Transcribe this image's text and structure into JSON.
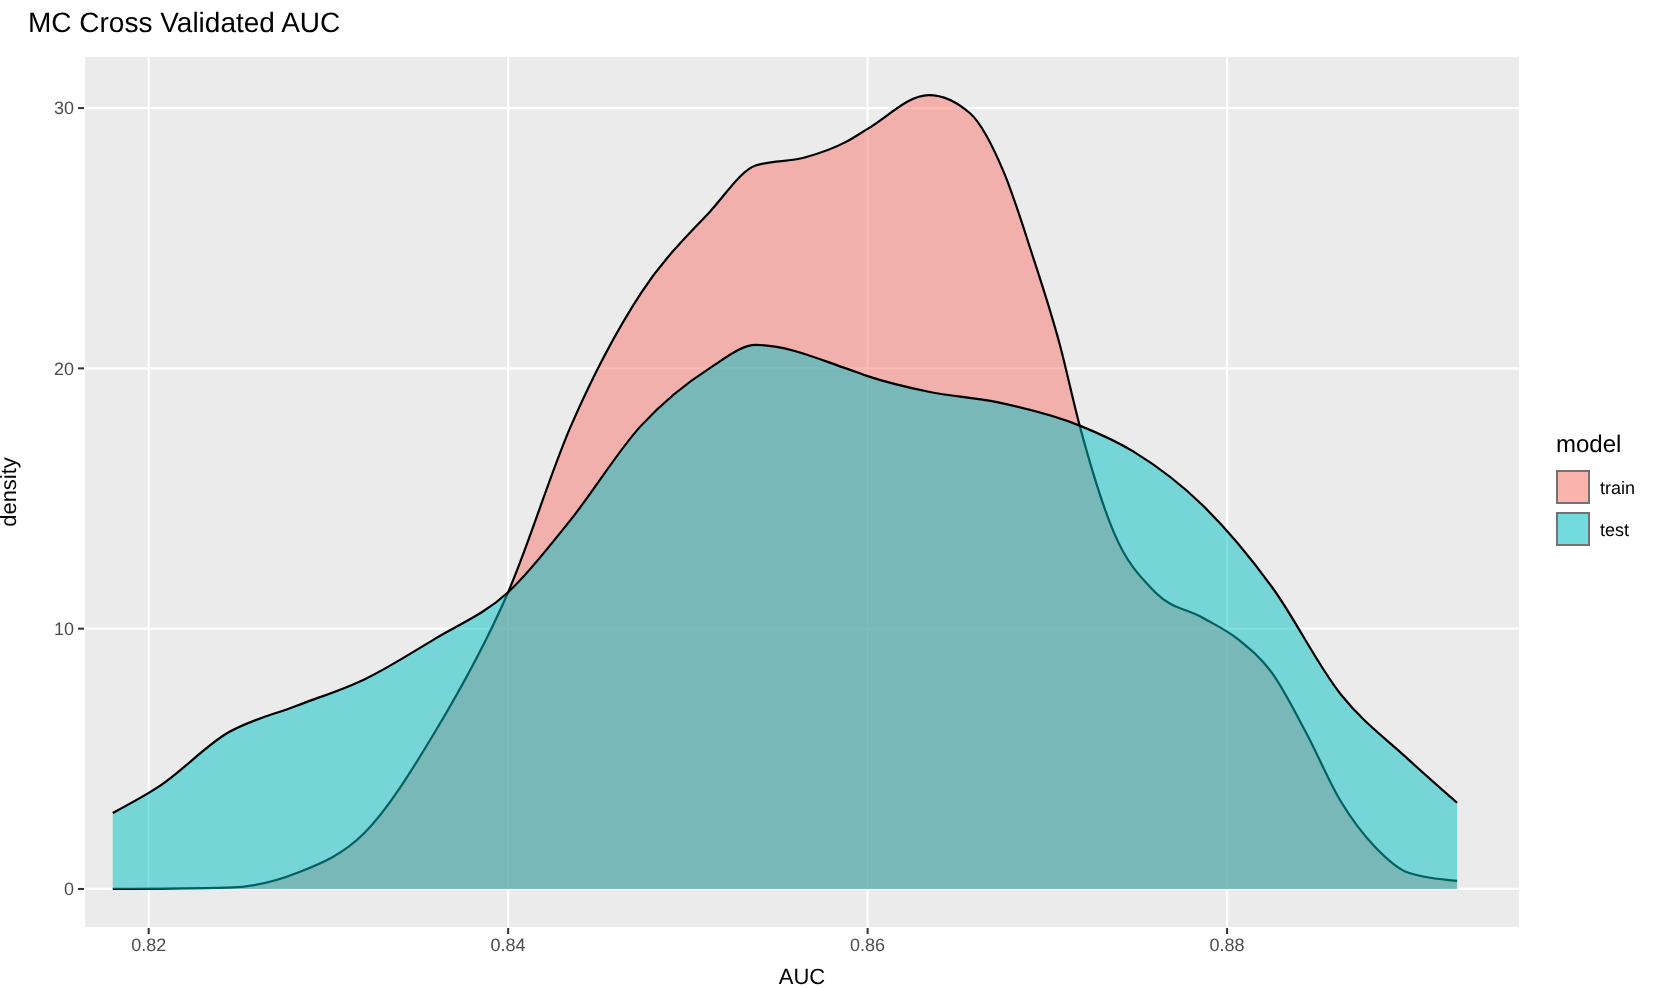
{
  "chart_data": {
    "type": "area",
    "title": "MC Cross Validated AUC",
    "xlabel": "AUC",
    "ylabel": "density",
    "legend_title": "model",
    "xlim": [
      0.8164,
      0.8963
    ],
    "xticks": [
      0.82,
      0.84,
      0.86,
      0.88
    ],
    "ylim": [
      -1.5,
      32
    ],
    "yticks": [
      0,
      10,
      20,
      30
    ],
    "grid": true,
    "legend": "right",
    "series": [
      {
        "name": "train",
        "color": "#f8766d",
        "x": [
          0.818,
          0.8244,
          0.8282,
          0.832,
          0.8359,
          0.84,
          0.8435,
          0.8474,
          0.8512,
          0.8538,
          0.8565,
          0.8588,
          0.86,
          0.8634,
          0.8657,
          0.8676,
          0.8691,
          0.8707,
          0.8718,
          0.8737,
          0.876,
          0.8787,
          0.8806,
          0.8825,
          0.8844,
          0.8863,
          0.8882,
          0.8901,
          0.8928
        ],
        "values": [
          0,
          0.05,
          0.6,
          2.15,
          6.0,
          11.4,
          17.8,
          22.9,
          26.0,
          27.8,
          28.1,
          28.7,
          29.2,
          30.5,
          29.8,
          27.5,
          24.5,
          20.9,
          17.8,
          13.7,
          11.4,
          10.4,
          9.6,
          8.3,
          6.0,
          3.4,
          1.64,
          0.62,
          0.31
        ]
      },
      {
        "name": "test",
        "color": "#00bfc4",
        "x": [
          0.818,
          0.8206,
          0.8244,
          0.8282,
          0.832,
          0.8359,
          0.84,
          0.8435,
          0.8474,
          0.8512,
          0.8538,
          0.8588,
          0.86,
          0.8634,
          0.8672,
          0.8718,
          0.8748,
          0.8787,
          0.8825,
          0.8863,
          0.8901,
          0.8928
        ],
        "values": [
          2.92,
          3.95,
          6.0,
          7.03,
          8.05,
          9.6,
          11.4,
          14.2,
          17.8,
          20.0,
          20.9,
          20.0,
          19.7,
          19.1,
          18.7,
          17.8,
          16.8,
          14.7,
          11.6,
          7.5,
          4.97,
          3.31
        ]
      }
    ]
  }
}
